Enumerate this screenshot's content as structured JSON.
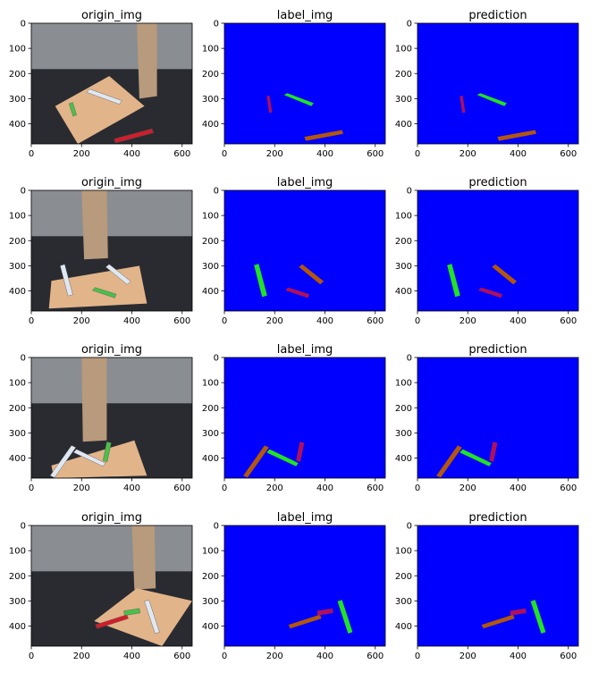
{
  "colors": {
    "background_class": "#0000ff",
    "class_green": "#22e322",
    "class_brown": "#b2570c",
    "class_magenta": "#b0105a",
    "floor_dark": "#2a2b31",
    "floor_wood": "#8a8d92",
    "board_wood": "#e2b48a"
  },
  "chart_data": [
    {
      "type": "image",
      "title": "origin_img",
      "row": 0,
      "col": 0,
      "xticks": [
        0,
        200,
        400,
        600
      ],
      "yticks": [
        0,
        100,
        200,
        300,
        400
      ],
      "xlim": [
        0,
        640
      ],
      "ylim": [
        480,
        0
      ]
    },
    {
      "type": "image",
      "title": "label_img",
      "row": 0,
      "col": 1,
      "xticks": [
        0,
        200,
        400,
        600
      ],
      "yticks": [
        0,
        100,
        200,
        300,
        400
      ],
      "xlim": [
        0,
        640
      ],
      "ylim": [
        480,
        0
      ]
    },
    {
      "type": "image",
      "title": "prediction",
      "row": 0,
      "col": 2,
      "xticks": [
        0,
        200,
        400,
        600
      ],
      "yticks": [
        0,
        100,
        200,
        300,
        400
      ],
      "xlim": [
        0,
        640
      ],
      "ylim": [
        480,
        0
      ]
    },
    {
      "type": "image",
      "title": "origin_img",
      "row": 1,
      "col": 0,
      "xticks": [
        0,
        200,
        400,
        600
      ],
      "yticks": [
        0,
        100,
        200,
        300,
        400
      ],
      "xlim": [
        0,
        640
      ],
      "ylim": [
        480,
        0
      ]
    },
    {
      "type": "image",
      "title": "label_img",
      "row": 1,
      "col": 1,
      "xticks": [
        0,
        200,
        400,
        600
      ],
      "yticks": [
        0,
        100,
        200,
        300,
        400
      ],
      "xlim": [
        0,
        640
      ],
      "ylim": [
        480,
        0
      ]
    },
    {
      "type": "image",
      "title": "prediction",
      "row": 1,
      "col": 2,
      "xticks": [
        0,
        200,
        400,
        600
      ],
      "yticks": [
        0,
        100,
        200,
        300,
        400
      ],
      "xlim": [
        0,
        640
      ],
      "ylim": [
        480,
        0
      ]
    },
    {
      "type": "image",
      "title": "origin_img",
      "row": 2,
      "col": 0,
      "xticks": [
        0,
        200,
        400,
        600
      ],
      "yticks": [
        0,
        100,
        200,
        300,
        400
      ],
      "xlim": [
        0,
        640
      ],
      "ylim": [
        480,
        0
      ]
    },
    {
      "type": "image",
      "title": "label_img",
      "row": 2,
      "col": 1,
      "xticks": [
        0,
        200,
        400,
        600
      ],
      "yticks": [
        0,
        100,
        200,
        300,
        400
      ],
      "xlim": [
        0,
        640
      ],
      "ylim": [
        480,
        0
      ]
    },
    {
      "type": "image",
      "title": "prediction",
      "row": 2,
      "col": 2,
      "xticks": [
        0,
        200,
        400,
        600
      ],
      "yticks": [
        0,
        100,
        200,
        300,
        400
      ],
      "xlim": [
        0,
        640
      ],
      "ylim": [
        480,
        0
      ]
    },
    {
      "type": "image",
      "title": "origin_img",
      "row": 3,
      "col": 0,
      "xticks": [
        0,
        200,
        400,
        600
      ],
      "yticks": [
        0,
        100,
        200,
        300,
        400
      ],
      "xlim": [
        0,
        640
      ],
      "ylim": [
        480,
        0
      ]
    },
    {
      "type": "image",
      "title": "label_img",
      "row": 3,
      "col": 1,
      "xticks": [
        0,
        200,
        400,
        600
      ],
      "yticks": [
        0,
        100,
        200,
        300,
        400
      ],
      "xlim": [
        0,
        640
      ],
      "ylim": [
        480,
        0
      ]
    },
    {
      "type": "image",
      "title": "prediction",
      "row": 3,
      "col": 2,
      "xticks": [
        0,
        200,
        400,
        600
      ],
      "yticks": [
        0,
        100,
        200,
        300,
        400
      ],
      "xlim": [
        0,
        640
      ],
      "ylim": [
        480,
        0
      ]
    }
  ]
}
